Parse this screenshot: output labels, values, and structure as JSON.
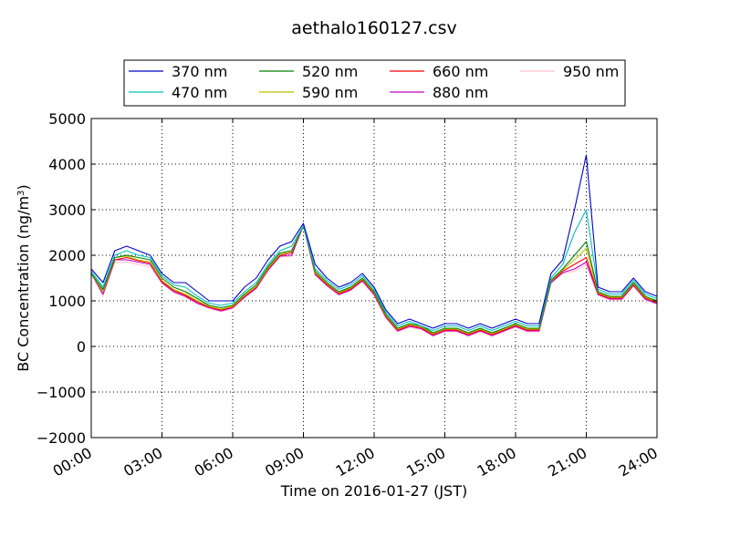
{
  "chart_data": {
    "type": "line",
    "title": "aethalo160127.csv",
    "xlabel": "Time on 2016-01-27 (JST)",
    "ylabel": "BC Concentration (ng/m",
    "ylabel_sup": "3",
    "ylabel_close": ")",
    "xlim": [
      "00:00",
      "24:00"
    ],
    "ylim": [
      -2000,
      5000
    ],
    "x_ticks": [
      "00:00",
      "03:00",
      "06:00",
      "09:00",
      "12:00",
      "15:00",
      "18:00",
      "21:00",
      "24:00"
    ],
    "y_ticks": [
      -2000,
      -1000,
      0,
      1000,
      2000,
      3000,
      4000,
      5000
    ],
    "y_tick_labels": [
      "−2000",
      "−1000",
      "0",
      "1000",
      "2000",
      "3000",
      "4000",
      "5000"
    ],
    "grid": true,
    "legend_position": "top",
    "x": [
      "00:00",
      "00:30",
      "01:00",
      "01:30",
      "02:00",
      "02:30",
      "03:00",
      "03:30",
      "04:00",
      "04:30",
      "05:00",
      "05:30",
      "06:00",
      "06:30",
      "07:00",
      "07:30",
      "08:00",
      "08:30",
      "09:00",
      "09:30",
      "10:00",
      "10:30",
      "11:00",
      "11:30",
      "12:00",
      "12:30",
      "13:00",
      "13:30",
      "14:00",
      "14:30",
      "15:00",
      "15:30",
      "16:00",
      "16:30",
      "17:00",
      "17:30",
      "18:00",
      "18:30",
      "19:00",
      "19:30",
      "20:00",
      "20:30",
      "21:00",
      "21:30",
      "22:00",
      "22:30",
      "23:00",
      "23:30",
      "24:00"
    ],
    "series": [
      {
        "name": "370 nm",
        "color": "#0000cc",
        "values": [
          1700,
          1400,
          2100,
          2200,
          2100,
          2000,
          1600,
          1400,
          1400,
          1200,
          1000,
          1000,
          1000,
          1300,
          1500,
          1900,
          2200,
          2300,
          2700,
          1800,
          1500,
          1300,
          1400,
          1600,
          1300,
          800,
          500,
          600,
          500,
          400,
          500,
          500,
          400,
          500,
          400,
          500,
          600,
          500,
          500,
          1600,
          1900,
          3000,
          4200,
          1300,
          1200,
          1200,
          1500,
          1200,
          1100
        ]
      },
      {
        "name": "470 nm",
        "color": "#00bfbf",
        "values": [
          1650,
          1300,
          2000,
          2100,
          2000,
          1950,
          1550,
          1350,
          1300,
          1100,
          950,
          900,
          950,
          1200,
          1400,
          1800,
          2100,
          2200,
          2650,
          1700,
          1450,
          1250,
          1350,
          1550,
          1250,
          750,
          450,
          550,
          450,
          350,
          450,
          450,
          350,
          450,
          350,
          450,
          550,
          450,
          450,
          1500,
          1800,
          2500,
          3000,
          1250,
          1150,
          1150,
          1450,
          1150,
          1050
        ]
      },
      {
        "name": "520 nm",
        "color": "#007f00",
        "values": [
          1600,
          1250,
          1950,
          2000,
          1950,
          1900,
          1500,
          1300,
          1200,
          1050,
          900,
          850,
          900,
          1150,
          1350,
          1750,
          2050,
          2100,
          2650,
          1650,
          1400,
          1200,
          1300,
          1500,
          1200,
          700,
          400,
          500,
          450,
          300,
          400,
          400,
          300,
          400,
          300,
          400,
          500,
          400,
          400,
          1450,
          1700,
          2000,
          2300,
          1200,
          1100,
          1100,
          1400,
          1100,
          1000
        ]
      },
      {
        "name": "590 nm",
        "color": "#bfbf00",
        "values": [
          1600,
          1200,
          1950,
          1980,
          1900,
          1850,
          1450,
          1250,
          1150,
          1000,
          880,
          820,
          880,
          1120,
          1320,
          1720,
          2020,
          2080,
          2650,
          1620,
          1380,
          1180,
          1280,
          1480,
          1180,
          680,
          380,
          480,
          430,
          280,
          380,
          380,
          280,
          380,
          280,
          380,
          480,
          380,
          380,
          1430,
          1680,
          1900,
          2150,
          1180,
          1080,
          1080,
          1380,
          1080,
          980
        ]
      },
      {
        "name": "660 nm",
        "color": "#ff0000",
        "values": [
          1600,
          1200,
          1900,
          1950,
          1880,
          1830,
          1420,
          1230,
          1120,
          980,
          860,
          800,
          860,
          1100,
          1300,
          1700,
          2000,
          2050,
          2650,
          1600,
          1360,
          1160,
          1260,
          1460,
          1160,
          660,
          360,
          460,
          410,
          260,
          360,
          360,
          260,
          360,
          260,
          360,
          460,
          360,
          360,
          1420,
          1650,
          1800,
          1950,
          1160,
          1060,
          1060,
          1360,
          1060,
          960
        ]
      },
      {
        "name": "880 nm",
        "color": "#bf00bf",
        "values": [
          1600,
          1150,
          1900,
          1900,
          1850,
          1800,
          1400,
          1200,
          1100,
          950,
          850,
          780,
          850,
          1080,
          1280,
          1680,
          1980,
          2000,
          2650,
          1580,
          1340,
          1140,
          1240,
          1440,
          1140,
          640,
          340,
          440,
          390,
          240,
          340,
          340,
          240,
          340,
          240,
          340,
          440,
          340,
          340,
          1400,
          1620,
          1700,
          1850,
          1140,
          1040,
          1040,
          1340,
          1040,
          940
        ]
      },
      {
        "name": "950 nm",
        "color": "#ffc0cb",
        "values": [
          1600,
          1100,
          1850,
          1850,
          1800,
          1750,
          1380,
          1180,
          1080,
          930,
          830,
          760,
          830,
          1060,
          1260,
          1660,
          1960,
          1980,
          2650,
          1560,
          1320,
          1120,
          1220,
          1420,
          1120,
          620,
          320,
          420,
          370,
          220,
          320,
          320,
          220,
          320,
          220,
          320,
          420,
          320,
          320,
          1380,
          1600,
          1650,
          1800,
          1120,
          1020,
          1020,
          1320,
          1020,
          920
        ]
      }
    ]
  }
}
